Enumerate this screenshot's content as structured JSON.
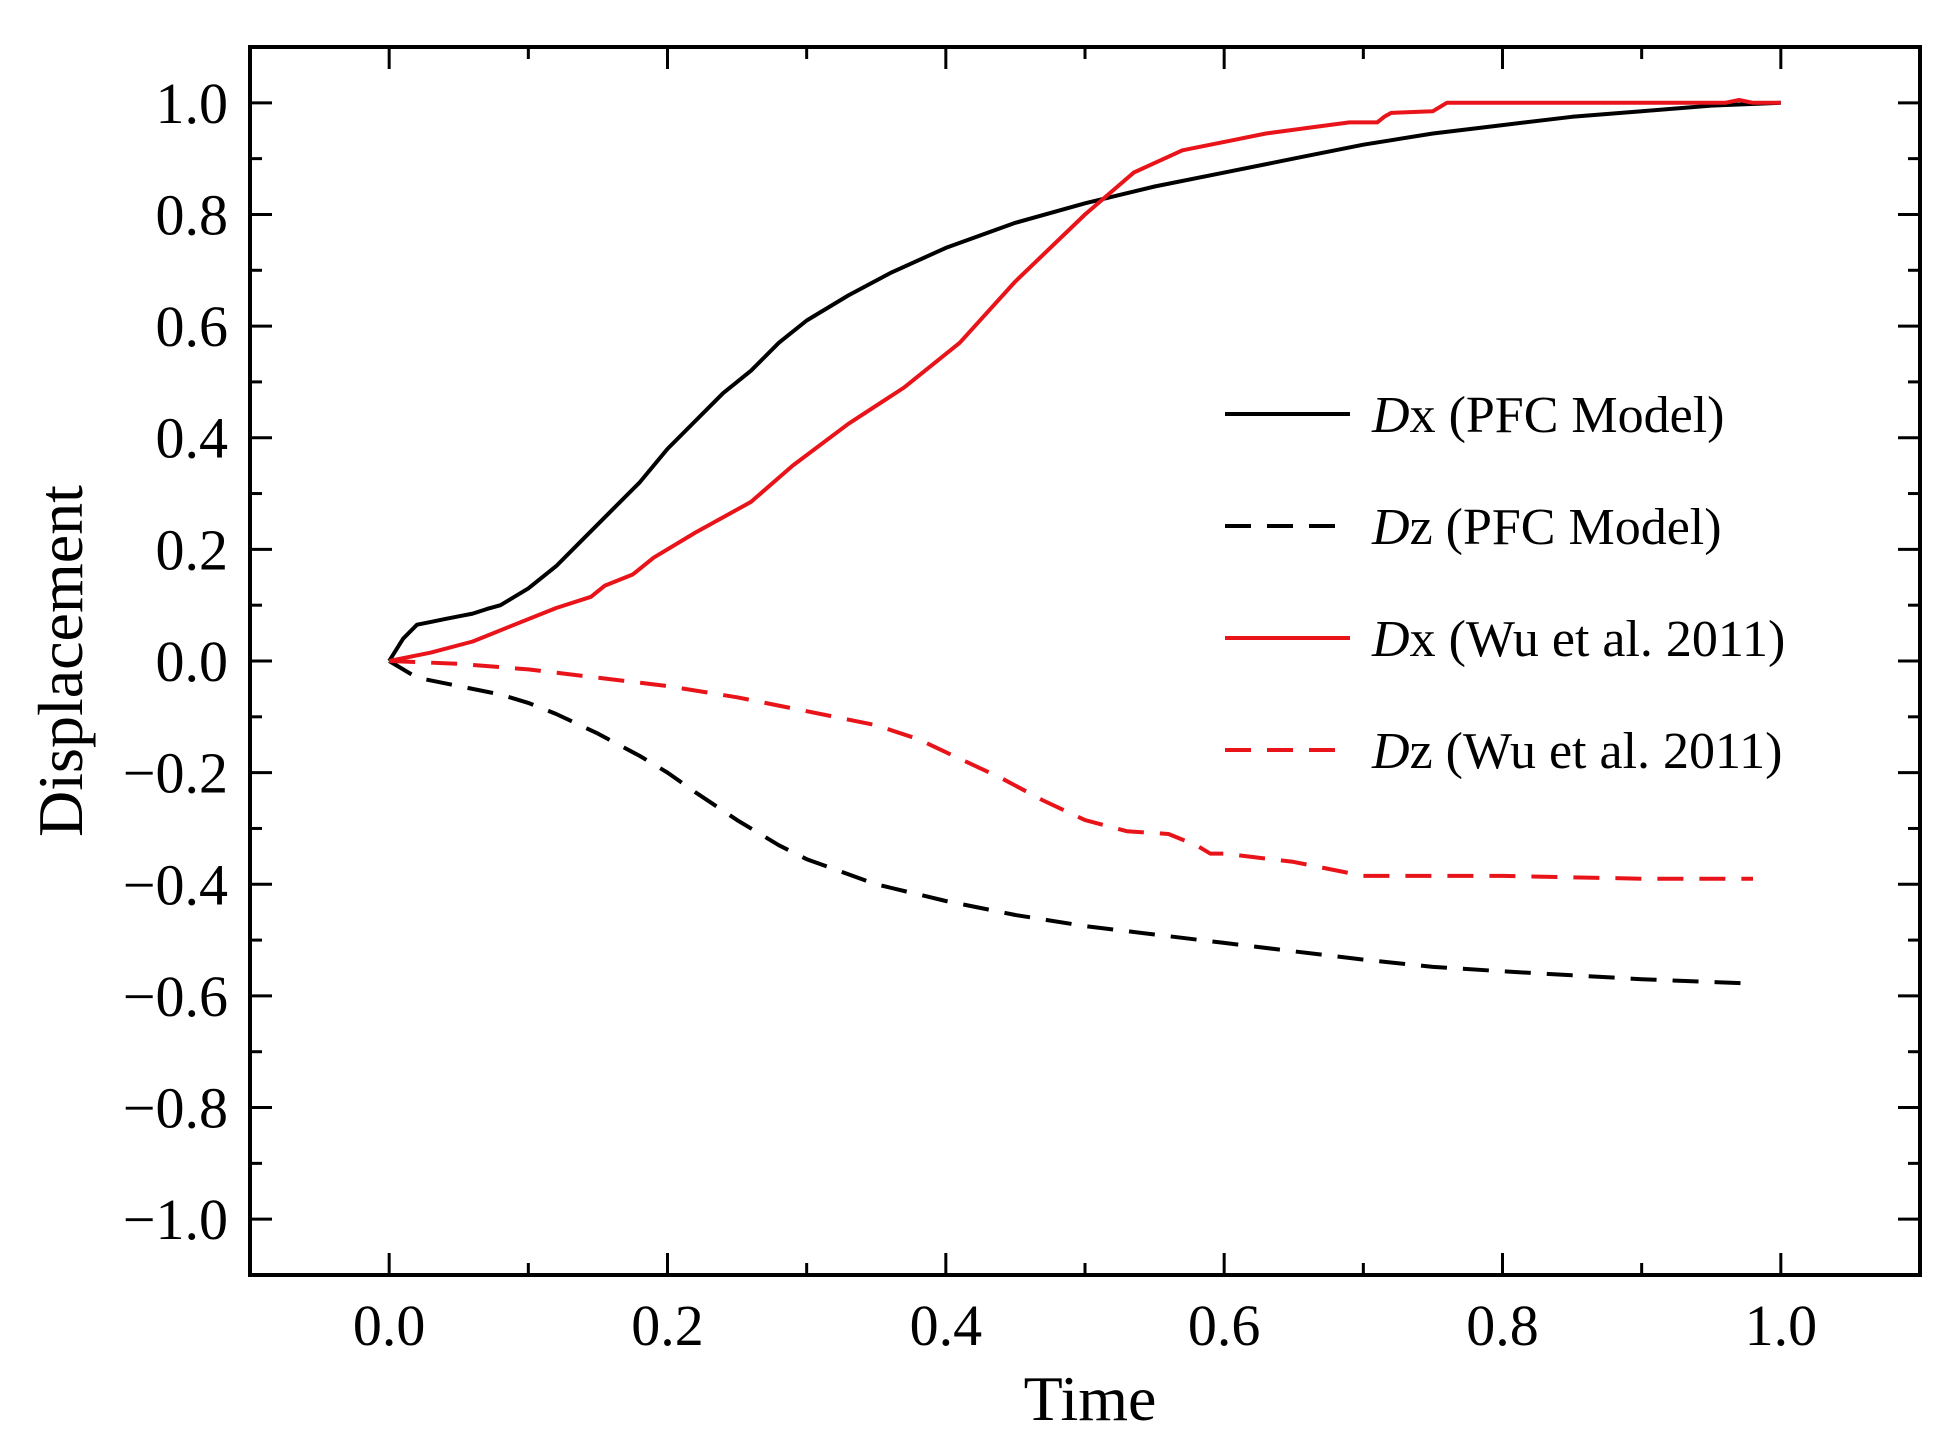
{
  "chart_data": {
    "type": "line",
    "title": "",
    "xlabel": "Time",
    "ylabel": "Displacement",
    "xlim": [
      -0.1,
      1.1
    ],
    "ylim": [
      -1.1,
      1.1
    ],
    "grid": false,
    "legend_position": "right-center",
    "x_ticks": [
      {
        "value": 0.0,
        "label": "0.0"
      },
      {
        "value": 0.2,
        "label": "0.2"
      },
      {
        "value": 0.4,
        "label": "0.4"
      },
      {
        "value": 0.6,
        "label": "0.6"
      },
      {
        "value": 0.8,
        "label": "0.8"
      },
      {
        "value": 1.0,
        "label": "1.0"
      }
    ],
    "y_ticks": [
      {
        "value": 1.0,
        "label": "1.0"
      },
      {
        "value": 0.8,
        "label": "0.8"
      },
      {
        "value": 0.6,
        "label": "0.6"
      },
      {
        "value": 0.4,
        "label": "0.4"
      },
      {
        "value": 0.2,
        "label": "0.2"
      },
      {
        "value": 0.0,
        "label": "0.0"
      },
      {
        "value": -0.2,
        "label": "−0.2"
      },
      {
        "value": -0.4,
        "label": "−0.4"
      },
      {
        "value": -0.6,
        "label": "−0.6"
      },
      {
        "value": -0.8,
        "label": "−0.8"
      },
      {
        "value": -1.0,
        "label": "−1.0"
      }
    ],
    "series": [
      {
        "name": "Dx (PFC Model)",
        "var": "D",
        "suffix": "x (PFC Model)",
        "color": "#000000",
        "dash": "solid",
        "x": [
          0.0,
          0.01,
          0.02,
          0.03,
          0.04,
          0.05,
          0.06,
          0.07,
          0.08,
          0.09,
          0.1,
          0.12,
          0.14,
          0.16,
          0.18,
          0.2,
          0.22,
          0.24,
          0.26,
          0.28,
          0.3,
          0.33,
          0.36,
          0.4,
          0.45,
          0.5,
          0.55,
          0.6,
          0.65,
          0.7,
          0.75,
          0.8,
          0.85,
          0.9,
          0.95,
          1.0
        ],
        "y": [
          0.0,
          0.04,
          0.065,
          0.07,
          0.075,
          0.08,
          0.085,
          0.093,
          0.1,
          0.115,
          0.13,
          0.17,
          0.22,
          0.27,
          0.32,
          0.38,
          0.43,
          0.48,
          0.52,
          0.57,
          0.61,
          0.655,
          0.695,
          0.74,
          0.785,
          0.82,
          0.85,
          0.875,
          0.9,
          0.925,
          0.945,
          0.96,
          0.975,
          0.985,
          0.995,
          1.0
        ]
      },
      {
        "name": "Dz (PFC Model)",
        "var": "D",
        "suffix": "z (PFC Model)",
        "color": "#000000",
        "dash": "dashed",
        "x": [
          0.0,
          0.02,
          0.05,
          0.08,
          0.1,
          0.12,
          0.15,
          0.18,
          0.2,
          0.22,
          0.25,
          0.28,
          0.3,
          0.35,
          0.4,
          0.45,
          0.5,
          0.55,
          0.6,
          0.65,
          0.7,
          0.75,
          0.8,
          0.85,
          0.9,
          0.95,
          0.98
        ],
        "y": [
          0.0,
          -0.03,
          -0.045,
          -0.06,
          -0.075,
          -0.095,
          -0.13,
          -0.17,
          -0.2,
          -0.235,
          -0.285,
          -0.33,
          -0.355,
          -0.4,
          -0.43,
          -0.455,
          -0.475,
          -0.49,
          -0.505,
          -0.52,
          -0.535,
          -0.548,
          -0.556,
          -0.563,
          -0.57,
          -0.575,
          -0.578
        ]
      },
      {
        "name": "Dx (Wu et al. 2011)",
        "var": "D",
        "suffix": "x (Wu et al. 2011)",
        "color": "#e8141a",
        "dash": "solid",
        "x": [
          0.0,
          0.03,
          0.06,
          0.09,
          0.12,
          0.145,
          0.155,
          0.175,
          0.19,
          0.22,
          0.26,
          0.29,
          0.33,
          0.37,
          0.41,
          0.45,
          0.5,
          0.535,
          0.57,
          0.6,
          0.63,
          0.66,
          0.69,
          0.71,
          0.715,
          0.72,
          0.75,
          0.76,
          0.8,
          0.9,
          0.96,
          0.97,
          0.98,
          1.0
        ],
        "y": [
          0.0,
          0.015,
          0.035,
          0.065,
          0.095,
          0.115,
          0.135,
          0.155,
          0.185,
          0.23,
          0.285,
          0.35,
          0.425,
          0.49,
          0.57,
          0.68,
          0.8,
          0.875,
          0.915,
          0.93,
          0.945,
          0.955,
          0.965,
          0.965,
          0.975,
          0.982,
          0.985,
          1.0,
          1.0,
          1.0,
          1.0,
          1.005,
          1.0,
          1.0
        ]
      },
      {
        "name": "Dz (Wu et al. 2011)",
        "var": "D",
        "suffix": "z (Wu et al. 2011)",
        "color": "#e8141a",
        "dash": "dashed",
        "x": [
          0.0,
          0.05,
          0.1,
          0.15,
          0.2,
          0.25,
          0.3,
          0.35,
          0.38,
          0.41,
          0.44,
          0.47,
          0.5,
          0.53,
          0.56,
          0.58,
          0.59,
          0.6,
          0.65,
          0.69,
          0.7,
          0.75,
          0.8,
          0.9,
          0.98
        ],
        "y": [
          0.0,
          -0.005,
          -0.015,
          -0.03,
          -0.045,
          -0.065,
          -0.09,
          -0.115,
          -0.14,
          -0.175,
          -0.21,
          -0.25,
          -0.285,
          -0.305,
          -0.31,
          -0.33,
          -0.345,
          -0.345,
          -0.36,
          -0.38,
          -0.385,
          -0.385,
          -0.385,
          -0.39,
          -0.39
        ]
      }
    ]
  }
}
